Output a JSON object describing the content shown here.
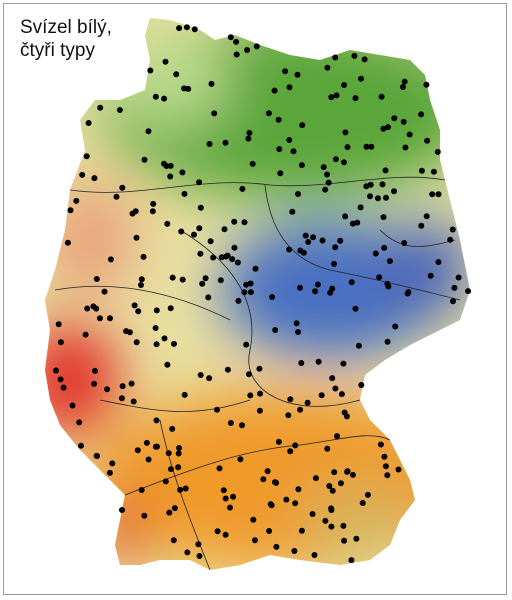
{
  "title": {
    "lines": [
      "Svízel bílý,",
      "čtyři typy"
    ]
  }
}
